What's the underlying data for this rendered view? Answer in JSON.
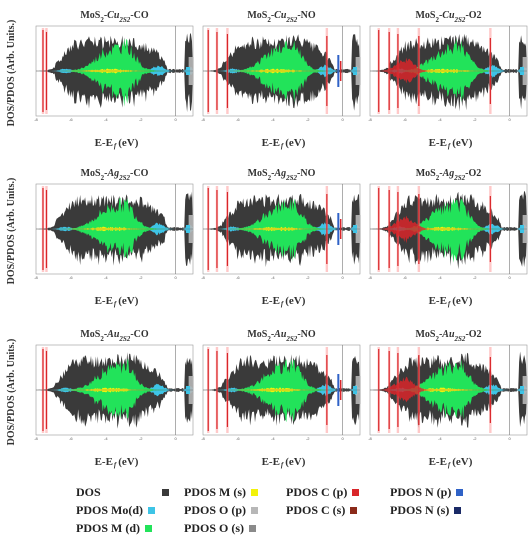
{
  "colors": {
    "DOS": "#3a3a3a",
    "PDOS_M_s": "#f2f20a",
    "PDOS_Mo_d": "#3ec4e6",
    "PDOS_O_p": "#b7b7b7",
    "PDOS_C_p": "#d9262a",
    "PDOS_C_s": "#8b2a1a",
    "PDOS_N_p": "#2f62c7",
    "PDOS_N_s": "#1a2a66",
    "PDOS_M_d": "#22e35a",
    "PDOS_O_s": "#8a8a8a",
    "spike": "#ff9a9a"
  },
  "chart_data": [
    {
      "type": "area",
      "title": "MoS2-Cu2S2-CO",
      "title_parts": [
        "MoS",
        "2",
        "-",
        "Cu",
        "2S2",
        "-CO"
      ],
      "xlabel": "E-E f (eV)",
      "ylabel": "DOS/PDOS (Arb. Units.)",
      "xlim": [
        -8,
        1
      ],
      "x_ticks": [
        "-8",
        "-6",
        "-4",
        "-2",
        "0"
      ],
      "fermi_x": 0,
      "series": [
        "DOS",
        "PDOS Mo(d)",
        "PDOS M (d)",
        "PDOS C (p)",
        "PDOS O (p)"
      ]
    },
    {
      "type": "area",
      "title": "MoS2-Cu2S2-NO",
      "title_parts": [
        "MoS",
        "2",
        "-",
        "Cu",
        "2S2",
        "-NO"
      ],
      "xlabel": "E-E f (eV)",
      "ylabel": "",
      "xlim": [
        -8,
        1
      ],
      "x_ticks": [
        "-8",
        "-6",
        "-4",
        "-2",
        "0"
      ],
      "fermi_x": 0,
      "series": [
        "DOS",
        "PDOS Mo(d)",
        "PDOS M (d)",
        "PDOS N (p)",
        "PDOS O (p)"
      ]
    },
    {
      "type": "area",
      "title": "MoS2-Cu2S2-O2",
      "title_parts": [
        "MoS",
        "2",
        "-",
        "Cu",
        "2S2",
        "-O2"
      ],
      "xlabel": "E-E f (eV)",
      "ylabel": "",
      "xlim": [
        -8,
        1
      ],
      "x_ticks": [
        "-8",
        "-6",
        "-4",
        "-2",
        "0"
      ],
      "fermi_x": 0,
      "series": [
        "DOS",
        "PDOS Mo(d)",
        "PDOS M (d)",
        "PDOS O (p)"
      ]
    },
    {
      "type": "area",
      "title": "MoS2-Ag2S2-CO",
      "title_parts": [
        "MoS",
        "2",
        "-",
        "Ag",
        "2S2",
        "-CO"
      ],
      "xlabel": "E-E f (eV)",
      "ylabel": "DOS/PDOS (Arb. Units.)",
      "xlim": [
        -8,
        1
      ],
      "x_ticks": [
        "-8",
        "-6",
        "-4",
        "-2",
        "0"
      ],
      "fermi_x": 0,
      "series": [
        "DOS",
        "PDOS Mo(d)",
        "PDOS M (d)",
        "PDOS C (p)",
        "PDOS O (p)"
      ]
    },
    {
      "type": "area",
      "title": "MoS2-Ag2S2-NO",
      "title_parts": [
        "MoS",
        "2",
        "-",
        "Ag",
        "2S2",
        "-NO"
      ],
      "xlabel": "E-E f (eV)",
      "ylabel": "",
      "xlim": [
        -8,
        1
      ],
      "x_ticks": [
        "-8",
        "-6",
        "-4",
        "-2",
        "0"
      ],
      "fermi_x": 0,
      "series": [
        "DOS",
        "PDOS Mo(d)",
        "PDOS M (d)",
        "PDOS N (p)",
        "PDOS O (p)"
      ]
    },
    {
      "type": "area",
      "title": "MoS2-Ag2S2-O2",
      "title_parts": [
        "MoS",
        "2",
        "-",
        "Ag",
        "2S2",
        "-O2"
      ],
      "xlabel": "E-E f (eV)",
      "ylabel": "",
      "xlim": [
        -8,
        1
      ],
      "x_ticks": [
        "-8",
        "-6",
        "-4",
        "-2",
        "0"
      ],
      "fermi_x": 0,
      "series": [
        "DOS",
        "PDOS Mo(d)",
        "PDOS M (d)",
        "PDOS O (p)"
      ]
    },
    {
      "type": "area",
      "title": "MoS2-Au2S2-CO",
      "title_parts": [
        "MoS",
        "2",
        "-",
        "Au",
        "2S2",
        "-CO"
      ],
      "xlabel": "E-E f (eV)",
      "ylabel": "DOS/PDOS (Arb. Units.)",
      "xlim": [
        -8,
        1
      ],
      "x_ticks": [
        "-8",
        "-6",
        "-4",
        "-2",
        "0"
      ],
      "fermi_x": 0,
      "series": [
        "DOS",
        "PDOS Mo(d)",
        "PDOS M (d)",
        "PDOS C (p)",
        "PDOS O (p)"
      ]
    },
    {
      "type": "area",
      "title": "MoS2-Au2S2-NO",
      "title_parts": [
        "MoS",
        "2",
        "-",
        "Au",
        "2S2",
        "-NO"
      ],
      "xlabel": "E-E f (eV)",
      "ylabel": "",
      "xlim": [
        -8,
        1
      ],
      "x_ticks": [
        "-8",
        "-6",
        "-4",
        "-2",
        "0"
      ],
      "fermi_x": 0,
      "series": [
        "DOS",
        "PDOS Mo(d)",
        "PDOS M (d)",
        "PDOS N (p)",
        "PDOS O (p)"
      ]
    },
    {
      "type": "area",
      "title": "MoS2-Au2S2-O2",
      "title_parts": [
        "MoS",
        "2",
        "-",
        "Au",
        "2S2",
        "-O2"
      ],
      "xlabel": "E-E f (eV)",
      "ylabel": "",
      "xlim": [
        -8,
        1
      ],
      "x_ticks": [
        "-8",
        "-6",
        "-4",
        "-2",
        "0"
      ],
      "fermi_x": 0,
      "series": [
        "DOS",
        "PDOS Mo(d)",
        "PDOS M (d)",
        "PDOS O (p)"
      ]
    }
  ],
  "legend": {
    "items": [
      {
        "label": "DOS",
        "key": "DOS"
      },
      {
        "label": "PDOS M (s)",
        "key": "PDOS_M_s"
      },
      {
        "label": "PDOS C (p)",
        "key": "PDOS_C_p"
      },
      {
        "label": "PDOS N (p)",
        "key": "PDOS_N_p"
      },
      {
        "label": "PDOS Mo(d)",
        "key": "PDOS_Mo_d"
      },
      {
        "label": "PDOS O (p)",
        "key": "PDOS_O_p"
      },
      {
        "label": "PDOS C (s)",
        "key": "PDOS_C_s"
      },
      {
        "label": "PDOS N (s)",
        "key": "PDOS_N_s"
      },
      {
        "label": "PDOS M (d)",
        "key": "PDOS_M_d"
      },
      {
        "label": "PDOS O (s)",
        "key": "PDOS_O_s"
      }
    ]
  }
}
